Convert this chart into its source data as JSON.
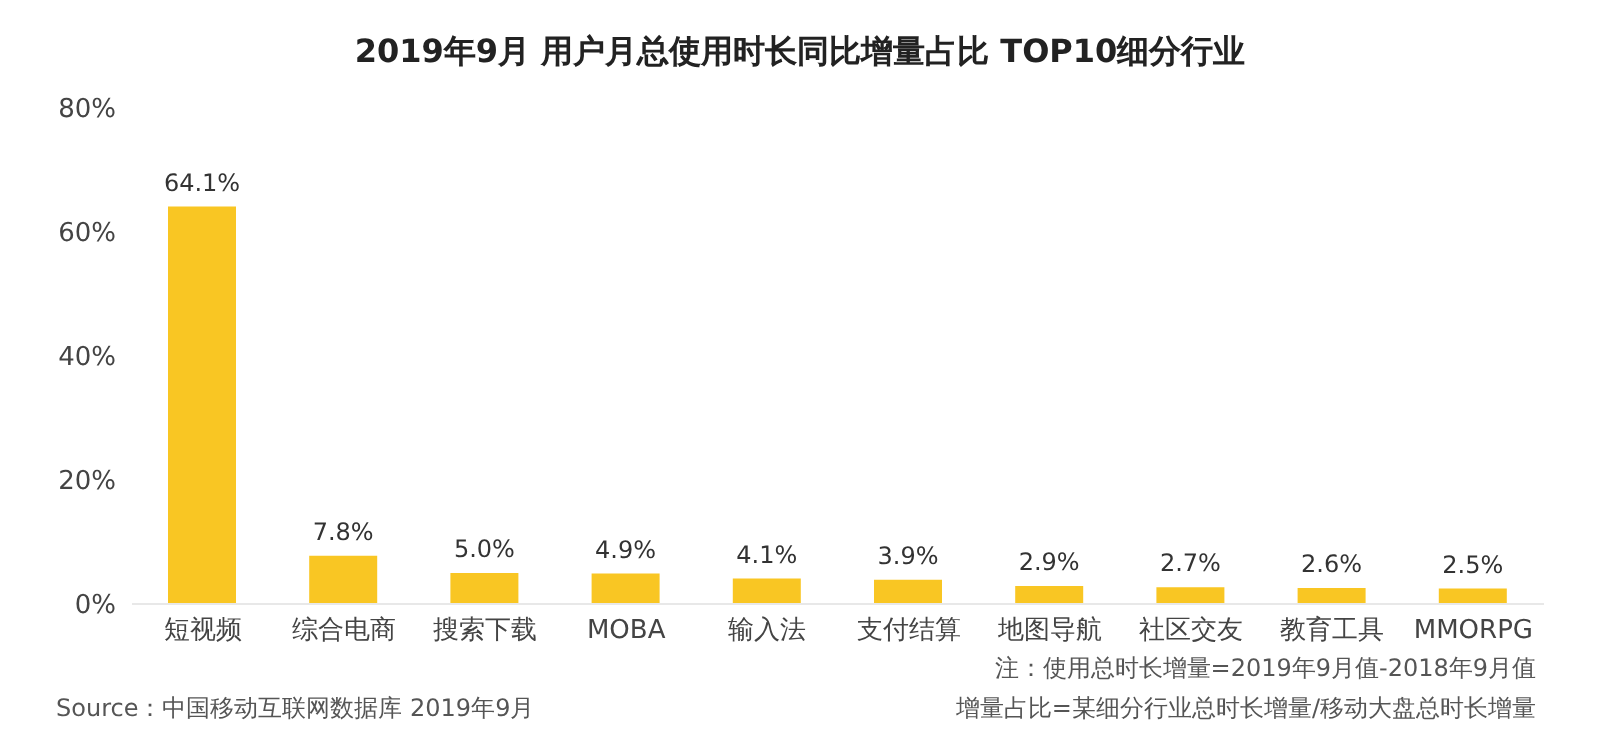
{
  "chart_data": {
    "type": "bar",
    "title": "2019年9月 用户月总使用时长同比增量占比 TOP10细分行业",
    "categories": [
      "短视频",
      "综合电商",
      "搜索下载",
      "MOBA",
      "输入法",
      "支付结算",
      "地图导航",
      "社区交友",
      "教育工具",
      "MMORPG"
    ],
    "values": [
      64.1,
      7.8,
      5.0,
      4.9,
      4.1,
      3.9,
      2.9,
      2.7,
      2.6,
      2.5
    ],
    "value_labels": [
      "64.1%",
      "7.8%",
      "5.0%",
      "4.9%",
      "4.1%",
      "3.9%",
      "2.9%",
      "2.7%",
      "2.6%",
      "2.5%"
    ],
    "color": "#f9c623",
    "ylim": [
      0,
      80
    ],
    "yticks": [
      {
        "value": 0,
        "label": "0%"
      },
      {
        "value": 20,
        "label": "20%"
      },
      {
        "value": 40,
        "label": "40%"
      },
      {
        "value": 60,
        "label": "60%"
      },
      {
        "value": 80,
        "label": "80%"
      }
    ],
    "grid": false,
    "annotations": [
      "注：使用总时长增量=2019年9月值-2018年9月值",
      "Source：中国移动互联网数据库 2019年9月",
      "增量占比=某细分行业总时长增量/移动大盘总时长增量"
    ]
  }
}
